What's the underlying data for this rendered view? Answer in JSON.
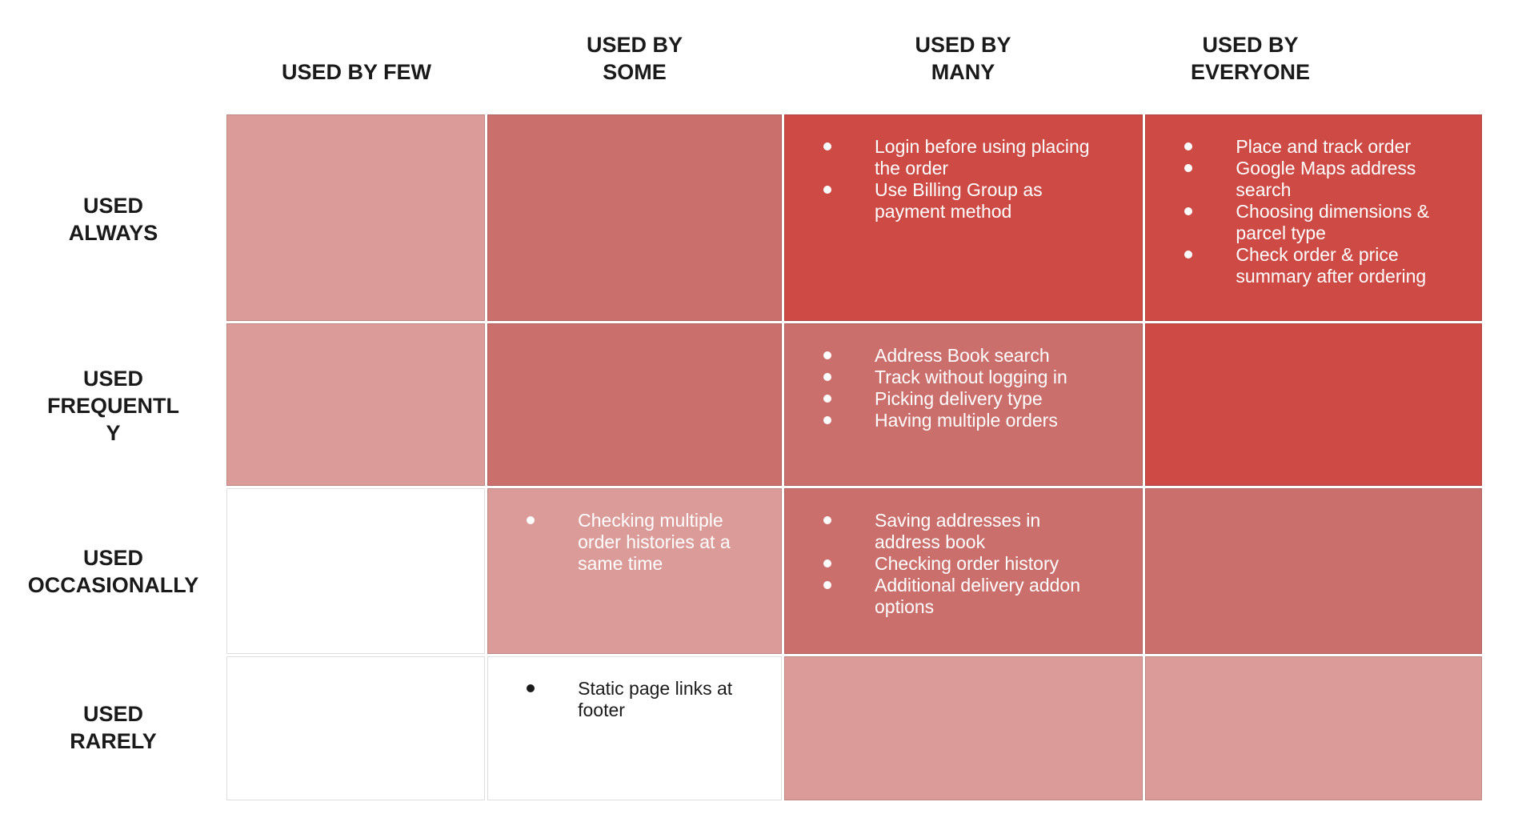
{
  "palette": {
    "high": "#cd4a45",
    "medium": "#cb6f6c",
    "low": "#db9b98",
    "none": "#ffffff",
    "text_on_color": "#ffffff",
    "text_on_white": "#1a1a1a"
  },
  "columns": [
    {
      "label": "USED BY FEW"
    },
    {
      "label": "USED BY SOME"
    },
    {
      "label": "USED BY MANY"
    },
    {
      "label": "USED BY EVERYONE"
    }
  ],
  "rows": [
    {
      "label": "USED ALWAYS"
    },
    {
      "label": "USED FREQUENTLY"
    },
    {
      "label": "USED OCCASIONALLY"
    },
    {
      "label": "USED RARELY"
    }
  ],
  "matrix": {
    "cells": [
      {
        "row": "USED ALWAYS",
        "col": "USED BY FEW",
        "intensity": "low",
        "items": []
      },
      {
        "row": "USED ALWAYS",
        "col": "USED BY SOME",
        "intensity": "medium",
        "items": []
      },
      {
        "row": "USED ALWAYS",
        "col": "USED BY MANY",
        "intensity": "high",
        "items": [
          "Login before using placing the order",
          "Use Billing Group as payment method"
        ]
      },
      {
        "row": "USED ALWAYS",
        "col": "USED BY EVERYONE",
        "intensity": "high",
        "items": [
          "Place and track order",
          "Google Maps address search",
          "Choosing dimensions & parcel type",
          "Check order & price summary after ordering"
        ]
      },
      {
        "row": "USED FREQUENTLY",
        "col": "USED BY FEW",
        "intensity": "low",
        "items": []
      },
      {
        "row": "USED FREQUENTLY",
        "col": "USED BY SOME",
        "intensity": "medium",
        "items": []
      },
      {
        "row": "USED FREQUENTLY",
        "col": "USED BY MANY",
        "intensity": "medium",
        "items": [
          "Address Book search",
          "Track without logging in",
          "Picking delivery type",
          "Having multiple orders"
        ]
      },
      {
        "row": "USED FREQUENTLY",
        "col": "USED BY EVERYONE",
        "intensity": "high",
        "items": []
      },
      {
        "row": "USED OCCASIONALLY",
        "col": "USED BY FEW",
        "intensity": "none",
        "items": []
      },
      {
        "row": "USED OCCASIONALLY",
        "col": "USED BY SOME",
        "intensity": "low",
        "items": [
          "Checking multiple order histories at a same time"
        ]
      },
      {
        "row": "USED OCCASIONALLY",
        "col": "USED BY MANY",
        "intensity": "medium",
        "items": [
          "Saving addresses in address book",
          "Checking order history",
          "Additional delivery addon options"
        ]
      },
      {
        "row": "USED OCCASIONALLY",
        "col": "USED BY EVERYONE",
        "intensity": "medium",
        "items": []
      },
      {
        "row": "USED RARELY",
        "col": "USED BY FEW",
        "intensity": "none",
        "items": []
      },
      {
        "row": "USED RARELY",
        "col": "USED BY SOME",
        "intensity": "none",
        "items": [
          "Static page links at footer"
        ]
      },
      {
        "row": "USED RARELY",
        "col": "USED BY MANY",
        "intensity": "low",
        "items": []
      },
      {
        "row": "USED RARELY",
        "col": "USED BY EVERYONE",
        "intensity": "low",
        "items": []
      }
    ]
  }
}
